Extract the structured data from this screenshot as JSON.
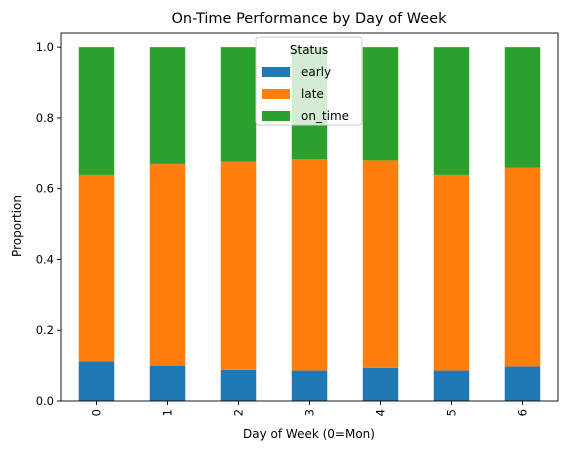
{
  "chart_data": {
    "type": "bar",
    "stacked": true,
    "title": "On-Time Performance by Day of Week",
    "xlabel": "Day of Week (0=Mon)",
    "ylabel": "Proportion",
    "categories": [
      "0",
      "1",
      "2",
      "3",
      "4",
      "5",
      "6"
    ],
    "ylim": [
      0,
      1.04
    ],
    "yticks": [
      "0.0",
      "0.2",
      "0.4",
      "0.6",
      "0.8",
      "1.0"
    ],
    "series": [
      {
        "name": "early",
        "color": "#1f77b4",
        "values": [
          0.112,
          0.1,
          0.088,
          0.086,
          0.094,
          0.086,
          0.098
        ]
      },
      {
        "name": "late",
        "color": "#ff7f0e",
        "values": [
          0.527,
          0.57,
          0.588,
          0.597,
          0.586,
          0.553,
          0.561
        ]
      },
      {
        "name": "on_time",
        "color": "#2ca02c",
        "values": [
          0.361,
          0.33,
          0.324,
          0.317,
          0.32,
          0.361,
          0.341
        ]
      }
    ],
    "legend": {
      "title": "Status",
      "placement": "top-center"
    },
    "grid": false
  }
}
